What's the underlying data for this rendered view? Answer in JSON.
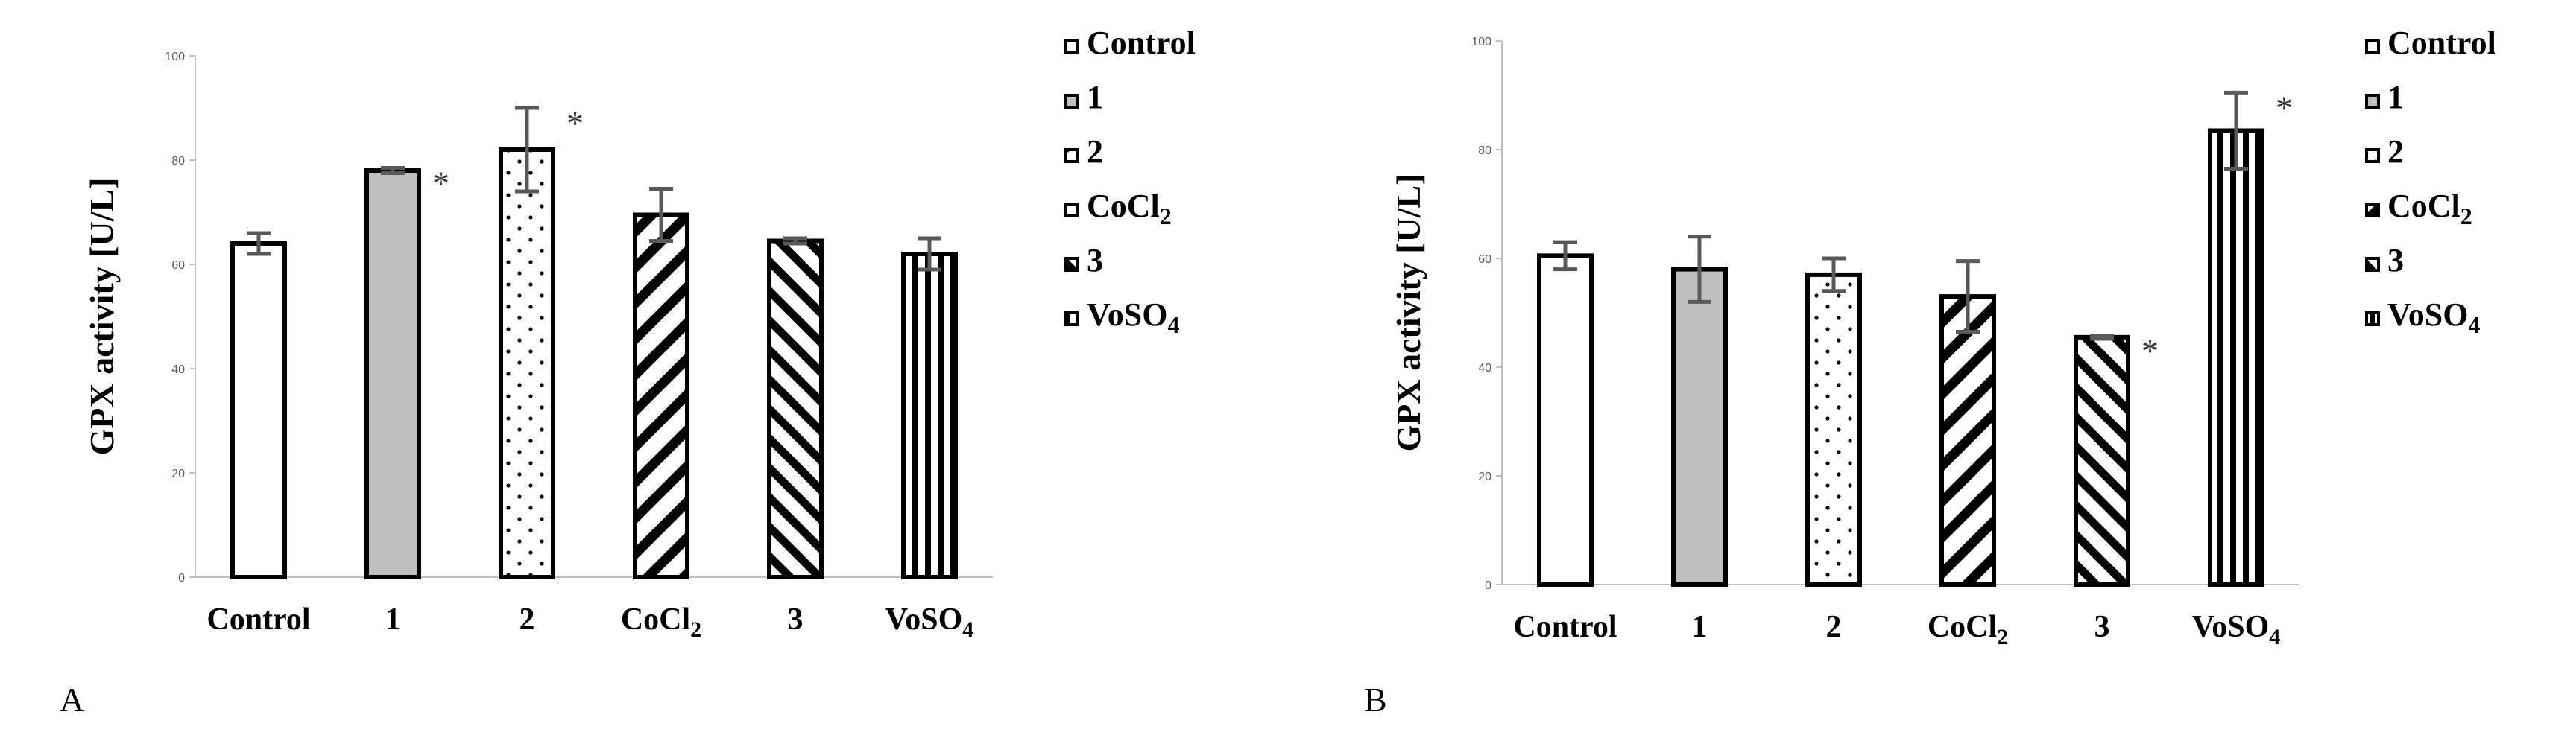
{
  "chart_data": [
    {
      "panel": "A",
      "type": "bar",
      "ylabel": "GPX activity [U/L]",
      "ylim": [
        0,
        100
      ],
      "yticks": [
        0,
        20,
        40,
        60,
        80,
        100
      ],
      "categories": [
        "Control",
        "1",
        "2",
        "CoCl2",
        "3",
        "VoSO4"
      ],
      "values": [
        64,
        78,
        82,
        69.5,
        64.5,
        62
      ],
      "errors": [
        2,
        0.5,
        8,
        5,
        0.5,
        3
      ],
      "significant": [
        false,
        true,
        true,
        false,
        false,
        false
      ],
      "significance_mark": "*",
      "legend": [
        "Control",
        "1",
        "2",
        "CoCl2",
        "3",
        "VoSO4"
      ],
      "legend_position": "right"
    },
    {
      "panel": "B",
      "type": "bar",
      "ylabel": "GPX activity [U/L]",
      "ylim": [
        0,
        100
      ],
      "yticks": [
        0,
        20,
        40,
        60,
        80,
        100
      ],
      "categories": [
        "Control",
        "1",
        "2",
        "CoCl2",
        "3",
        "VoSO4"
      ],
      "values": [
        60.5,
        58,
        57,
        53,
        45.5,
        83.5
      ],
      "errors": [
        2.5,
        6,
        3,
        6.5,
        0.3,
        7
      ],
      "significant": [
        false,
        false,
        false,
        false,
        true,
        true
      ],
      "significance_mark": "*",
      "legend": [
        "Control",
        "1",
        "2",
        "CoCl2",
        "3",
        "VoSO4"
      ],
      "legend_position": "right"
    }
  ],
  "panel_labels": [
    "A",
    "B"
  ],
  "colors": {
    "bar_stroke": "#000000",
    "gray_fill": "#bfbfbf",
    "error_bar": "#595959",
    "axis": "#bfbfbf"
  },
  "patterns": [
    "white",
    "gray",
    "dots",
    "diag-wide",
    "diag-narrow",
    "vertical"
  ]
}
